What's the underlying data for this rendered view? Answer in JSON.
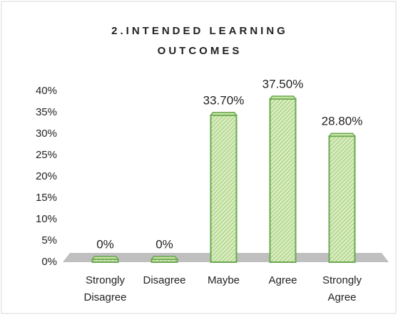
{
  "chart_data": {
    "type": "bar",
    "title": "2.INTENDED LEARNING OUTCOMES",
    "categories": [
      "Strongly Disagree",
      "Disagree",
      "Maybe",
      "Agree",
      "Strongly Agree"
    ],
    "values": [
      0,
      0,
      33.7,
      37.5,
      28.8
    ],
    "value_labels": [
      "0%",
      "0%",
      "33.70%",
      "37.50%",
      "28.80%"
    ],
    "color": "#c6e2a4",
    "ylim": [
      0,
      40
    ],
    "yticks": [
      {
        "value": 0,
        "label": "0%"
      },
      {
        "value": 5,
        "label": "5%"
      },
      {
        "value": 10,
        "label": "10%"
      },
      {
        "value": 15,
        "label": "15%"
      },
      {
        "value": 20,
        "label": "20%"
      },
      {
        "value": 25,
        "label": "25%"
      },
      {
        "value": 30,
        "label": "30%"
      },
      {
        "value": 35,
        "label": "35%"
      },
      {
        "value": 40,
        "label": "40%"
      }
    ],
    "grid": false
  }
}
